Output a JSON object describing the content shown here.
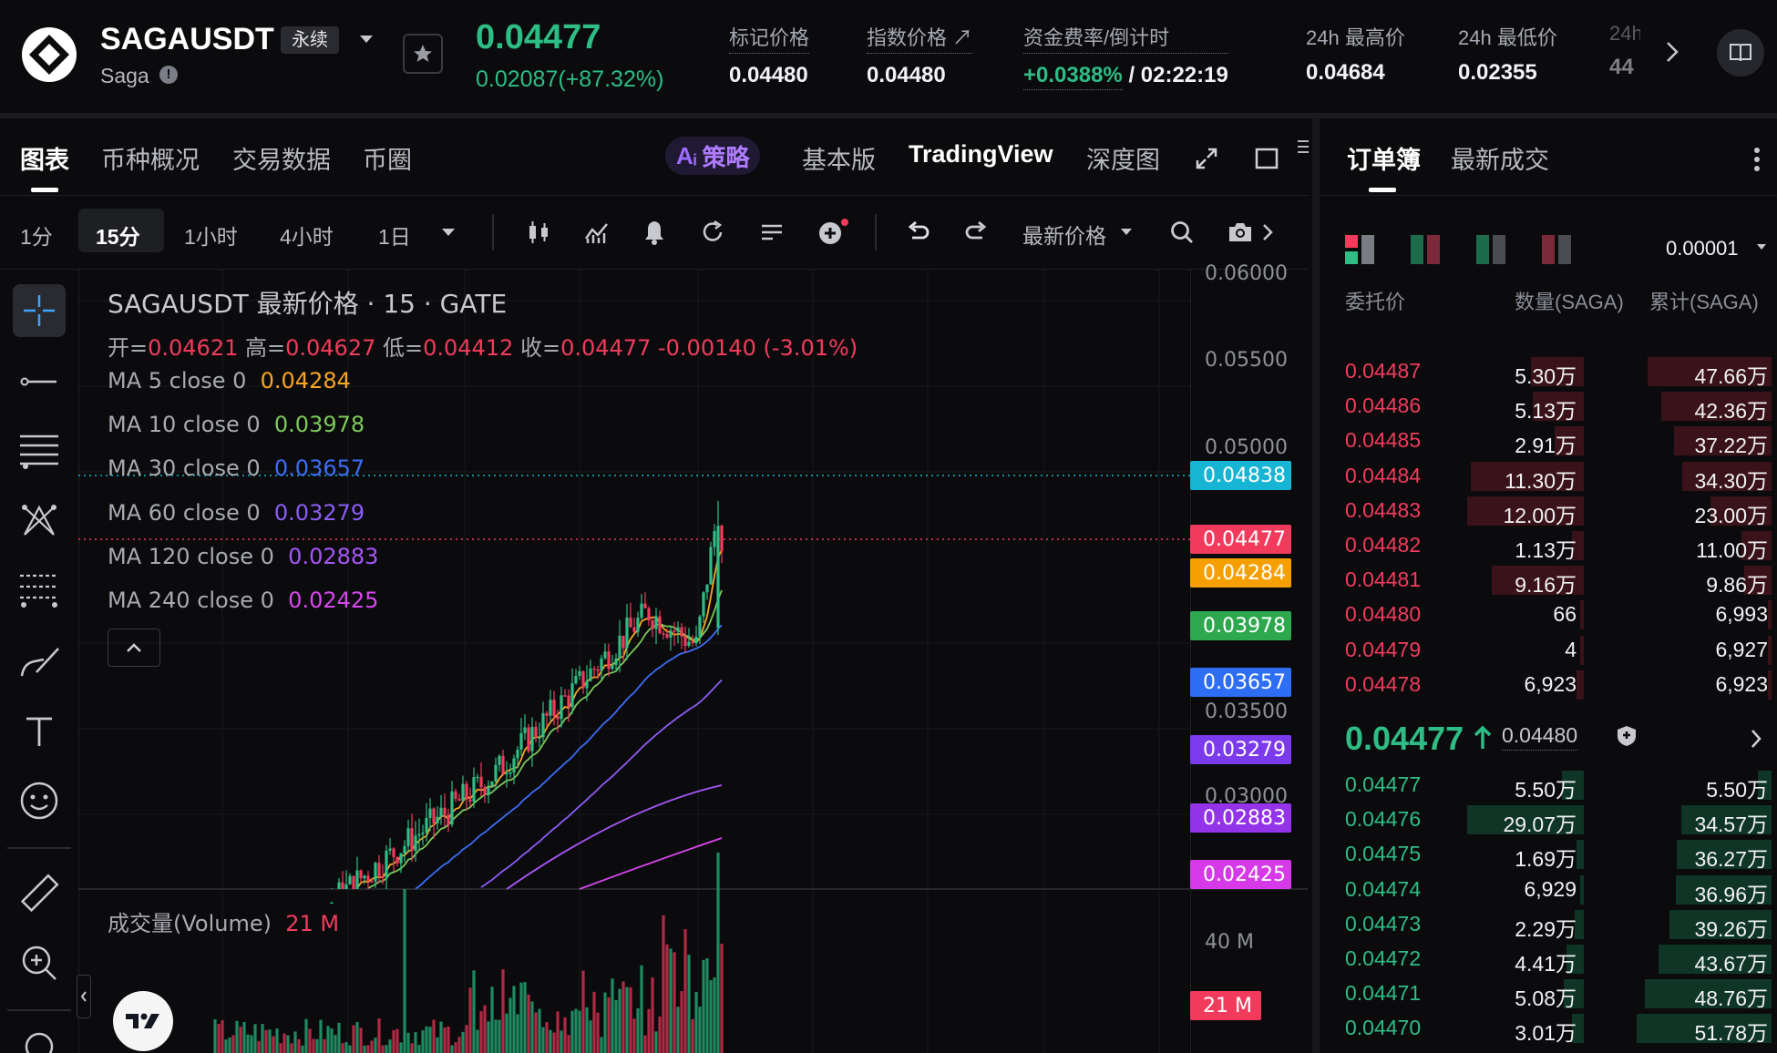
{
  "header": {
    "symbol": "SAGAUSDT",
    "contract_badge": "永续",
    "subtitle": "Saga",
    "last_price": "0.04477",
    "change": "0.02087(+87.32%)",
    "stats": [
      {
        "label": "标记价格",
        "value": "0.04480"
      },
      {
        "label": "指数价格 ↗",
        "value": "0.04480"
      },
      {
        "label": "资金费率/倒计时",
        "value_rate": "+0.0388%",
        "value_timer": "/ 02:22:19"
      },
      {
        "label": "24h 最高价",
        "value": "0.04684"
      },
      {
        "label": "24h 最低价",
        "value": "0.02355"
      },
      {
        "label": "24h",
        "value": "44"
      }
    ]
  },
  "chart_tabs": [
    "图表",
    "币种概况",
    "交易数据",
    "币圈"
  ],
  "ai_label": "策略",
  "view_tabs": [
    "基本版",
    "TradingView",
    "深度图"
  ],
  "timeframes": [
    "1分",
    "15分",
    "1小时",
    "4小时",
    "1日"
  ],
  "price_type": "最新价格",
  "chart": {
    "title": "SAGAUSDT 最新价格 · 15 · GATE",
    "ohlc": {
      "open_label": "开=",
      "open": "0.04621",
      "high_label": "高=",
      "high": "0.04627",
      "low_label": "低=",
      "low": "0.04412",
      "close_label": "收=",
      "close": "0.04477",
      "delta": "-0.00140 (-3.01%)"
    },
    "ma": [
      {
        "label": "MA 5 close 0",
        "value": "0.04284",
        "color": "#f5a623"
      },
      {
        "label": "MA 10 close 0",
        "value": "0.03978",
        "color": "#7cc95a"
      },
      {
        "label": "MA 30 close 0",
        "value": "0.03657",
        "color": "#3b6cf6"
      },
      {
        "label": "MA 60 close 0",
        "value": "0.03279",
        "color": "#8b5cf6"
      },
      {
        "label": "MA 120 close 0",
        "value": "0.02883",
        "color": "#a855f7"
      },
      {
        "label": "MA 240 close 0",
        "value": "0.02425",
        "color": "#d946ef"
      }
    ],
    "y_ticks": [
      "0.06000",
      "0.05500",
      "0.05000",
      "0.03500",
      "0.03000"
    ],
    "price_labels": [
      {
        "text": "0.04838",
        "color": "#17b5d4"
      },
      {
        "text": "0.04477",
        "color": "#f23b5c"
      },
      {
        "text": "0.04284",
        "color": "#f5a000"
      },
      {
        "text": "0.03978",
        "color": "#2ea84f"
      },
      {
        "text": "0.03657",
        "color": "#2d6ef5"
      },
      {
        "text": "0.03279",
        "color": "#7c3aed"
      },
      {
        "text": "0.02883",
        "color": "#9333ea"
      },
      {
        "text": "0.02425",
        "color": "#d63ae8"
      }
    ],
    "volume_label": "成交量(Volume)",
    "volume_value": "21 M",
    "volume_ticks": [
      "40 M"
    ],
    "volume_tag": "21 M"
  },
  "orderbook": {
    "tabs": [
      "订单簿",
      "最新成交"
    ],
    "precision": "0.00001",
    "columns": [
      "委托价",
      "数量(SAGA)",
      "累计(SAGA)"
    ],
    "asks": [
      {
        "price": "0.04487",
        "qty": "5.30万",
        "cum": "47.66万",
        "qf": 0.45,
        "cf": 0.92
      },
      {
        "price": "0.04486",
        "qty": "5.13万",
        "cum": "42.36万",
        "qf": 0.44,
        "cf": 0.82
      },
      {
        "price": "0.04485",
        "qty": "2.91万",
        "cum": "37.22万",
        "qf": 0.25,
        "cf": 0.72
      },
      {
        "price": "0.04484",
        "qty": "11.30万",
        "cum": "34.30万",
        "qf": 0.97,
        "cf": 0.66
      },
      {
        "price": "0.04483",
        "qty": "12.00万",
        "cum": "23.00万",
        "qf": 1.0,
        "cf": 0.45
      },
      {
        "price": "0.04482",
        "qty": "1.13万",
        "cum": "11.00万",
        "qf": 0.1,
        "cf": 0.22
      },
      {
        "price": "0.04481",
        "qty": "9.16万",
        "cum": "9.86万",
        "qf": 0.79,
        "cf": 0.2
      },
      {
        "price": "0.04480",
        "qty": "66",
        "cum": "6,993",
        "qf": 0.0,
        "cf": 0.01
      },
      {
        "price": "0.04479",
        "qty": "4",
        "cum": "6,927",
        "qf": 0.0,
        "cf": 0.01
      },
      {
        "price": "0.04478",
        "qty": "6,923",
        "cum": "6,923",
        "qf": 0.06,
        "cf": 0.01
      }
    ],
    "last_price": "0.04477",
    "mark_price": "0.04480",
    "bids": [
      {
        "price": "0.04477",
        "qty": "5.50万",
        "cum": "5.50万",
        "qf": 0.19,
        "cf": 0.1
      },
      {
        "price": "0.04476",
        "qty": "29.07万",
        "cum": "34.57万",
        "qf": 1.0,
        "cf": 0.67
      },
      {
        "price": "0.04475",
        "qty": "1.69万",
        "cum": "36.27万",
        "qf": 0.06,
        "cf": 0.7
      },
      {
        "price": "0.04474",
        "qty": "6,929",
        "cum": "36.96万",
        "qf": 0.02,
        "cf": 0.71
      },
      {
        "price": "0.04473",
        "qty": "2.29万",
        "cum": "39.26万",
        "qf": 0.08,
        "cf": 0.76
      },
      {
        "price": "0.04472",
        "qty": "4.41万",
        "cum": "43.67万",
        "qf": 0.15,
        "cf": 0.84
      },
      {
        "price": "0.04471",
        "qty": "5.08万",
        "cum": "48.76万",
        "qf": 0.17,
        "cf": 0.94
      },
      {
        "price": "0.04470",
        "qty": "3.01万",
        "cum": "51.78万",
        "qf": 0.1,
        "cf": 1.0
      }
    ]
  }
}
